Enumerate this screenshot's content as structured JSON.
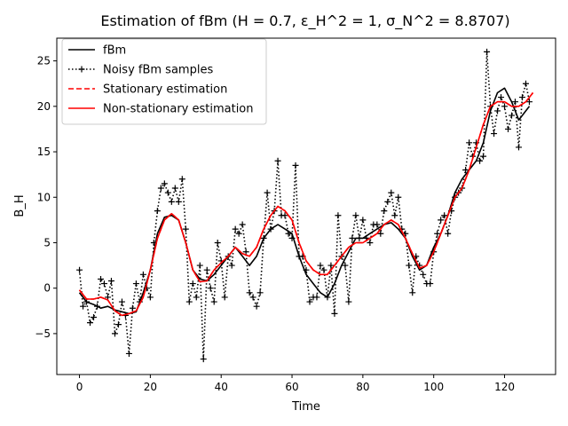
{
  "chart_data": {
    "type": "line",
    "title": "Estimation of fBm (H = 0.7, ε_H^2 = 1, σ_N^2 = 8.8707)",
    "xlabel": "Time",
    "ylabel": "B_H",
    "xlim": [
      -6.4,
      134.4
    ],
    "ylim": [
      -9.5,
      27.5
    ],
    "xticks": [
      0,
      20,
      40,
      60,
      80,
      100,
      120
    ],
    "yticks": [
      -5,
      0,
      5,
      10,
      15,
      20,
      25
    ],
    "grid": false,
    "legend_position": "upper-left",
    "series": [
      {
        "name": "fBm",
        "color": "#000000",
        "style": "solid",
        "points": [
          [
            0,
            -0.5
          ],
          [
            2,
            -1.5
          ],
          [
            4,
            -1.8
          ],
          [
            6,
            -2.2
          ],
          [
            8,
            -2.0
          ],
          [
            10,
            -2.4
          ],
          [
            12,
            -2.6
          ],
          [
            14,
            -2.8
          ],
          [
            16,
            -2.6
          ],
          [
            18,
            -0.5
          ],
          [
            20,
            2.0
          ],
          [
            22,
            6.0
          ],
          [
            24,
            7.8
          ],
          [
            26,
            8.0
          ],
          [
            28,
            7.5
          ],
          [
            30,
            5.0
          ],
          [
            32,
            2.0
          ],
          [
            34,
            1.0
          ],
          [
            36,
            0.8
          ],
          [
            38,
            1.5
          ],
          [
            40,
            2.5
          ],
          [
            42,
            3.5
          ],
          [
            44,
            4.5
          ],
          [
            46,
            3.5
          ],
          [
            48,
            2.5
          ],
          [
            50,
            3.5
          ],
          [
            52,
            5.5
          ],
          [
            54,
            6.5
          ],
          [
            56,
            7.0
          ],
          [
            58,
            6.5
          ],
          [
            60,
            6.0
          ],
          [
            62,
            3.5
          ],
          [
            64,
            1.5
          ],
          [
            66,
            0.5
          ],
          [
            68,
            -0.5
          ],
          [
            70,
            -1.0
          ],
          [
            72,
            0.5
          ],
          [
            74,
            2.5
          ],
          [
            76,
            4.0
          ],
          [
            78,
            5.5
          ],
          [
            80,
            5.5
          ],
          [
            82,
            6.0
          ],
          [
            84,
            6.5
          ],
          [
            86,
            7.0
          ],
          [
            88,
            7.2
          ],
          [
            90,
            6.5
          ],
          [
            92,
            5.5
          ],
          [
            94,
            3.5
          ],
          [
            96,
            2.0
          ],
          [
            98,
            2.5
          ],
          [
            100,
            4.5
          ],
          [
            102,
            6.0
          ],
          [
            104,
            8.0
          ],
          [
            106,
            10.5
          ],
          [
            108,
            12.0
          ],
          [
            110,
            13.0
          ],
          [
            112,
            14.0
          ],
          [
            114,
            16.0
          ],
          [
            116,
            19.5
          ],
          [
            118,
            21.5
          ],
          [
            120,
            22.0
          ],
          [
            122,
            20.5
          ],
          [
            124,
            18.5
          ],
          [
            126,
            19.5
          ],
          [
            127,
            20.0
          ]
        ]
      },
      {
        "name": "Noisy fBm samples",
        "color": "#000000",
        "style": "dotted",
        "marker": "+",
        "points": [
          [
            0,
            2.0
          ],
          [
            1,
            -2.0
          ],
          [
            2,
            -1.5
          ],
          [
            3,
            -3.8
          ],
          [
            4,
            -3.2
          ],
          [
            5,
            -2.0
          ],
          [
            6,
            1.0
          ],
          [
            7,
            0.5
          ],
          [
            8,
            -1.0
          ],
          [
            9,
            0.8
          ],
          [
            10,
            -5.0
          ],
          [
            11,
            -4.0
          ],
          [
            12,
            -1.5
          ],
          [
            13,
            -3.0
          ],
          [
            14,
            -7.2
          ],
          [
            15,
            -2.2
          ],
          [
            16,
            0.5
          ],
          [
            17,
            -1.5
          ],
          [
            18,
            1.5
          ],
          [
            19,
            0.0
          ],
          [
            20,
            -1.0
          ],
          [
            21,
            5.0
          ],
          [
            22,
            8.5
          ],
          [
            23,
            11.0
          ],
          [
            24,
            11.5
          ],
          [
            25,
            10.5
          ],
          [
            26,
            9.5
          ],
          [
            27,
            11.0
          ],
          [
            28,
            9.5
          ],
          [
            29,
            12.0
          ],
          [
            30,
            6.5
          ],
          [
            31,
            -1.5
          ],
          [
            32,
            0.5
          ],
          [
            33,
            -1.0
          ],
          [
            34,
            2.5
          ],
          [
            35,
            -7.8
          ],
          [
            36,
            2.0
          ],
          [
            37,
            0.0
          ],
          [
            38,
            -1.5
          ],
          [
            39,
            5.0
          ],
          [
            40,
            3.0
          ],
          [
            41,
            -1.0
          ],
          [
            42,
            3.5
          ],
          [
            43,
            2.5
          ],
          [
            44,
            6.5
          ],
          [
            45,
            6.0
          ],
          [
            46,
            7.0
          ],
          [
            47,
            4.0
          ],
          [
            48,
            -0.5
          ],
          [
            49,
            -1.0
          ],
          [
            50,
            -2.0
          ],
          [
            51,
            -0.5
          ],
          [
            52,
            5.5
          ],
          [
            53,
            10.5
          ],
          [
            54,
            6.5
          ],
          [
            55,
            8.5
          ],
          [
            56,
            14.0
          ],
          [
            57,
            8.0
          ],
          [
            58,
            8.0
          ],
          [
            59,
            6.0
          ],
          [
            60,
            5.5
          ],
          [
            61,
            13.5
          ],
          [
            62,
            3.5
          ],
          [
            63,
            3.5
          ],
          [
            64,
            2.0
          ],
          [
            65,
            -1.5
          ],
          [
            66,
            -1.0
          ],
          [
            67,
            -1.0
          ],
          [
            68,
            2.5
          ],
          [
            69,
            2.0
          ],
          [
            70,
            -1.0
          ],
          [
            71,
            2.5
          ],
          [
            72,
            -2.8
          ],
          [
            73,
            8.0
          ],
          [
            74,
            3.5
          ],
          [
            75,
            2.5
          ],
          [
            76,
            -1.5
          ],
          [
            77,
            5.5
          ],
          [
            78,
            8.0
          ],
          [
            79,
            5.5
          ],
          [
            80,
            7.5
          ],
          [
            81,
            5.5
          ],
          [
            82,
            5.0
          ],
          [
            83,
            7.0
          ],
          [
            84,
            7.0
          ],
          [
            85,
            6.0
          ],
          [
            86,
            8.5
          ],
          [
            87,
            9.5
          ],
          [
            88,
            10.5
          ],
          [
            89,
            8.0
          ],
          [
            90,
            10.0
          ],
          [
            91,
            6.5
          ],
          [
            92,
            6.0
          ],
          [
            93,
            2.5
          ],
          [
            94,
            -0.5
          ],
          [
            95,
            3.5
          ],
          [
            96,
            2.5
          ],
          [
            97,
            1.5
          ],
          [
            98,
            0.5
          ],
          [
            99,
            0.5
          ],
          [
            100,
            4.0
          ],
          [
            101,
            6.0
          ],
          [
            102,
            7.5
          ],
          [
            103,
            8.0
          ],
          [
            104,
            6.0
          ],
          [
            105,
            8.5
          ],
          [
            106,
            10.0
          ],
          [
            107,
            10.5
          ],
          [
            108,
            11.0
          ],
          [
            109,
            13.0
          ],
          [
            110,
            16.0
          ],
          [
            111,
            14.5
          ],
          [
            112,
            16.0
          ],
          [
            113,
            14.0
          ],
          [
            114,
            14.5
          ],
          [
            115,
            26.0
          ],
          [
            116,
            20.0
          ],
          [
            117,
            17.0
          ],
          [
            118,
            19.5
          ],
          [
            119,
            21.0
          ],
          [
            120,
            20.0
          ],
          [
            121,
            17.5
          ],
          [
            122,
            19.0
          ],
          [
            123,
            20.5
          ],
          [
            124,
            15.5
          ],
          [
            125,
            21.0
          ],
          [
            126,
            22.5
          ],
          [
            127,
            20.5
          ]
        ]
      },
      {
        "name": "Stationary estimation",
        "color": "#ff0000",
        "style": "dashed",
        "points": [
          [
            0,
            -0.2
          ],
          [
            2,
            -1.2
          ],
          [
            4,
            -1.2
          ],
          [
            6,
            -1.0
          ],
          [
            8,
            -1.3
          ],
          [
            10,
            -2.5
          ],
          [
            12,
            -3.0
          ],
          [
            14,
            -2.8
          ],
          [
            16,
            -2.5
          ],
          [
            18,
            -1.0
          ],
          [
            20,
            2.0
          ],
          [
            22,
            5.5
          ],
          [
            24,
            7.5
          ],
          [
            26,
            8.2
          ],
          [
            28,
            7.5
          ],
          [
            30,
            5.0
          ],
          [
            32,
            2.0
          ],
          [
            34,
            0.7
          ],
          [
            36,
            0.8
          ],
          [
            38,
            2.0
          ],
          [
            40,
            2.8
          ],
          [
            42,
            3.5
          ],
          [
            44,
            4.5
          ],
          [
            46,
            3.8
          ],
          [
            48,
            3.5
          ],
          [
            50,
            4.5
          ],
          [
            52,
            6.5
          ],
          [
            54,
            8.0
          ],
          [
            56,
            9.0
          ],
          [
            58,
            8.5
          ],
          [
            60,
            7.5
          ],
          [
            62,
            5.0
          ],
          [
            64,
            3.0
          ],
          [
            66,
            2.0
          ],
          [
            68,
            1.5
          ],
          [
            70,
            1.5
          ],
          [
            72,
            2.5
          ],
          [
            74,
            3.5
          ],
          [
            76,
            4.5
          ],
          [
            78,
            5.0
          ],
          [
            80,
            5.0
          ],
          [
            82,
            5.5
          ],
          [
            84,
            6.0
          ],
          [
            86,
            7.0
          ],
          [
            88,
            7.5
          ],
          [
            90,
            7.0
          ],
          [
            92,
            5.5
          ],
          [
            94,
            3.8
          ],
          [
            96,
            2.2
          ],
          [
            98,
            2.5
          ],
          [
            100,
            4.0
          ],
          [
            102,
            6.0
          ],
          [
            104,
            8.0
          ],
          [
            106,
            10.0
          ],
          [
            108,
            11.0
          ],
          [
            110,
            13.0
          ],
          [
            112,
            15.5
          ],
          [
            114,
            18.0
          ],
          [
            116,
            20.0
          ],
          [
            118,
            20.5
          ],
          [
            120,
            20.5
          ],
          [
            122,
            20.0
          ],
          [
            124,
            20.0
          ],
          [
            126,
            20.5
          ],
          [
            128,
            21.5
          ]
        ]
      },
      {
        "name": "Non-stationary estimation",
        "color": "#ff0000",
        "style": "solid",
        "points": [
          [
            0,
            -0.2
          ],
          [
            2,
            -1.2
          ],
          [
            4,
            -1.2
          ],
          [
            6,
            -1.0
          ],
          [
            8,
            -1.3
          ],
          [
            10,
            -2.5
          ],
          [
            12,
            -3.0
          ],
          [
            14,
            -2.8
          ],
          [
            16,
            -2.5
          ],
          [
            18,
            -1.0
          ],
          [
            20,
            2.0
          ],
          [
            22,
            5.5
          ],
          [
            24,
            7.5
          ],
          [
            26,
            8.2
          ],
          [
            28,
            7.5
          ],
          [
            30,
            5.0
          ],
          [
            32,
            2.0
          ],
          [
            34,
            0.7
          ],
          [
            36,
            0.8
          ],
          [
            38,
            2.0
          ],
          [
            40,
            2.8
          ],
          [
            42,
            3.5
          ],
          [
            44,
            4.5
          ],
          [
            46,
            3.8
          ],
          [
            48,
            3.5
          ],
          [
            50,
            4.5
          ],
          [
            52,
            6.5
          ],
          [
            54,
            8.0
          ],
          [
            56,
            9.0
          ],
          [
            58,
            8.5
          ],
          [
            60,
            7.5
          ],
          [
            62,
            5.0
          ],
          [
            64,
            3.0
          ],
          [
            66,
            2.0
          ],
          [
            68,
            1.5
          ],
          [
            70,
            1.5
          ],
          [
            72,
            2.5
          ],
          [
            74,
            3.5
          ],
          [
            76,
            4.5
          ],
          [
            78,
            5.0
          ],
          [
            80,
            5.0
          ],
          [
            82,
            5.5
          ],
          [
            84,
            6.0
          ],
          [
            86,
            7.0
          ],
          [
            88,
            7.5
          ],
          [
            90,
            7.0
          ],
          [
            92,
            5.5
          ],
          [
            94,
            3.8
          ],
          [
            96,
            2.2
          ],
          [
            98,
            2.5
          ],
          [
            100,
            4.0
          ],
          [
            102,
            6.0
          ],
          [
            104,
            8.0
          ],
          [
            106,
            10.0
          ],
          [
            108,
            11.0
          ],
          [
            110,
            13.0
          ],
          [
            112,
            15.5
          ],
          [
            114,
            18.0
          ],
          [
            116,
            20.0
          ],
          [
            118,
            20.5
          ],
          [
            120,
            20.5
          ],
          [
            122,
            20.0
          ],
          [
            124,
            20.0
          ],
          [
            126,
            20.5
          ],
          [
            128,
            21.5
          ]
        ]
      }
    ]
  }
}
